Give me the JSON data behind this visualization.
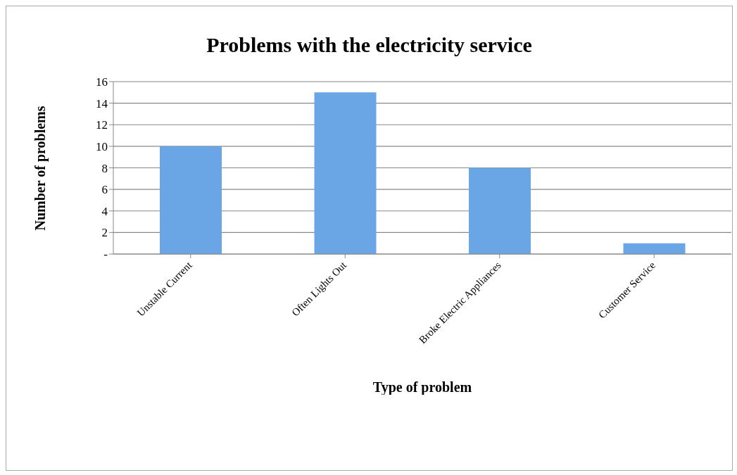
{
  "chart_data": {
    "type": "bar",
    "title": "Problems with the electricity service",
    "xlabel": "Type of problem",
    "ylabel": "Number of problems",
    "categories": [
      "Unstable Current",
      "Often Lights Out",
      "Broke Electric Appliances",
      "Customer Service"
    ],
    "values": [
      10,
      15,
      8,
      1
    ],
    "color": "#6aa5e6",
    "ylim": [
      0,
      16
    ],
    "yticks": [
      {
        "value": 0,
        "label": "-"
      },
      2,
      4,
      6,
      8,
      10,
      12,
      14,
      16
    ],
    "grid": "y"
  }
}
